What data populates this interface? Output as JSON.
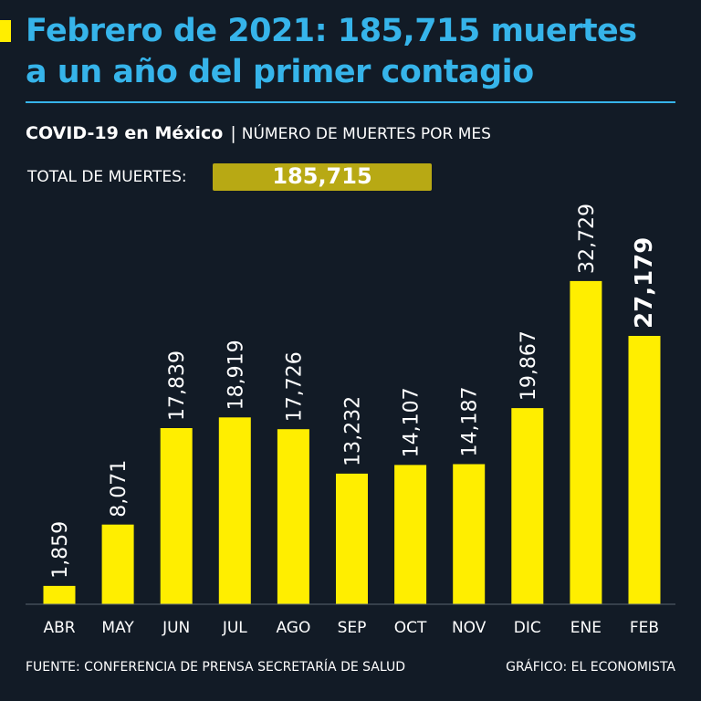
{
  "headline": {
    "line1": "Febrero de 2021: 185,715 muertes",
    "line2": "a un año del primer contagio"
  },
  "subtitle": {
    "strong": "COVID-19 en México",
    "separator": "|",
    "light": "NÚMERO DE MUERTES POR MES"
  },
  "total": {
    "label": "TOTAL DE MUERTES:",
    "value": "185,715"
  },
  "footer": {
    "source": "FUENTE: CONFERENCIA DE PRENSA SECRETARÍA DE SALUD",
    "credit": "GRÁFICO: EL ECONOMISTA"
  },
  "colors": {
    "background": "#121b26",
    "headline": "#36b4ea",
    "bar": "#ffee00",
    "total_box": "#b8a914"
  },
  "chart_data": {
    "type": "bar",
    "title": "COVID-19 en México | NÚMERO DE MUERTES POR MES",
    "xlabel": "",
    "ylabel": "",
    "categories": [
      "ABR",
      "MAY",
      "JUN",
      "JUL",
      "AGO",
      "SEP",
      "OCT",
      "NOV",
      "DIC",
      "ENE",
      "FEB"
    ],
    "values": [
      1859,
      8071,
      17839,
      18919,
      17726,
      13232,
      14107,
      14187,
      19867,
      32729,
      27179
    ],
    "value_labels": [
      "1,859",
      "8,071",
      "17,839",
      "18,919",
      "17,726",
      "13,232",
      "14,107",
      "14,187",
      "19,867",
      "32,729",
      "27,179"
    ],
    "highlight_index": 10,
    "ylim": [
      0,
      33000
    ],
    "grid": false
  }
}
